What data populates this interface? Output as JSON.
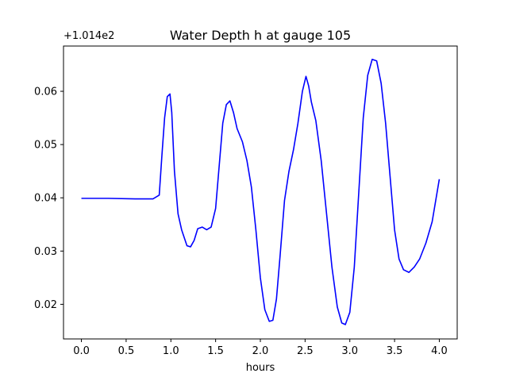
{
  "chart_data": {
    "type": "line",
    "title": "Water Depth h at gauge 105",
    "xlabel": "hours",
    "ylabel": "",
    "y_offset_label": "+1.014e2",
    "xlim": [
      -0.2,
      4.2
    ],
    "ylim": [
      0.0135,
      0.0685
    ],
    "x_ticks": [
      0.0,
      0.5,
      1.0,
      1.5,
      2.0,
      2.5,
      3.0,
      3.5,
      4.0
    ],
    "x_tick_labels": [
      "0.0",
      "0.5",
      "1.0",
      "1.5",
      "2.0",
      "2.5",
      "3.0",
      "3.5",
      "4.0"
    ],
    "y_ticks": [
      0.02,
      0.03,
      0.04,
      0.05,
      0.06
    ],
    "y_tick_labels": [
      "0.02",
      "0.03",
      "0.04",
      "0.05",
      "0.06"
    ],
    "grid": false,
    "series": [
      {
        "color": "#0000ff",
        "x": [
          0.0,
          0.3,
          0.6,
          0.8,
          0.87,
          0.9,
          0.93,
          0.96,
          0.99,
          1.01,
          1.04,
          1.08,
          1.12,
          1.18,
          1.22,
          1.26,
          1.3,
          1.35,
          1.4,
          1.45,
          1.5,
          1.54,
          1.58,
          1.62,
          1.66,
          1.7,
          1.74,
          1.8,
          1.85,
          1.9,
          1.95,
          2.0,
          2.05,
          2.1,
          2.14,
          2.18,
          2.22,
          2.27,
          2.32,
          2.37,
          2.42,
          2.47,
          2.51,
          2.54,
          2.57,
          2.62,
          2.68,
          2.74,
          2.8,
          2.86,
          2.91,
          2.95,
          3.0,
          3.05,
          3.1,
          3.15,
          3.2,
          3.25,
          3.3,
          3.35,
          3.4,
          3.45,
          3.5,
          3.55,
          3.6,
          3.66,
          3.72,
          3.78,
          3.85,
          3.92,
          4.0
        ],
        "y": [
          0.0399,
          0.0399,
          0.0398,
          0.0398,
          0.0405,
          0.048,
          0.055,
          0.059,
          0.0595,
          0.056,
          0.045,
          0.037,
          0.034,
          0.031,
          0.0308,
          0.032,
          0.0342,
          0.0345,
          0.034,
          0.0345,
          0.038,
          0.046,
          0.054,
          0.0575,
          0.0582,
          0.056,
          0.053,
          0.0505,
          0.047,
          0.042,
          0.034,
          0.025,
          0.019,
          0.0168,
          0.017,
          0.021,
          0.029,
          0.0395,
          0.045,
          0.049,
          0.054,
          0.06,
          0.0628,
          0.061,
          0.058,
          0.0545,
          0.047,
          0.037,
          0.027,
          0.0195,
          0.0165,
          0.0162,
          0.0185,
          0.027,
          0.041,
          0.055,
          0.063,
          0.066,
          0.0657,
          0.0615,
          0.054,
          0.044,
          0.034,
          0.0285,
          0.0265,
          0.026,
          0.027,
          0.0285,
          0.0315,
          0.0355,
          0.0435
        ]
      }
    ]
  }
}
